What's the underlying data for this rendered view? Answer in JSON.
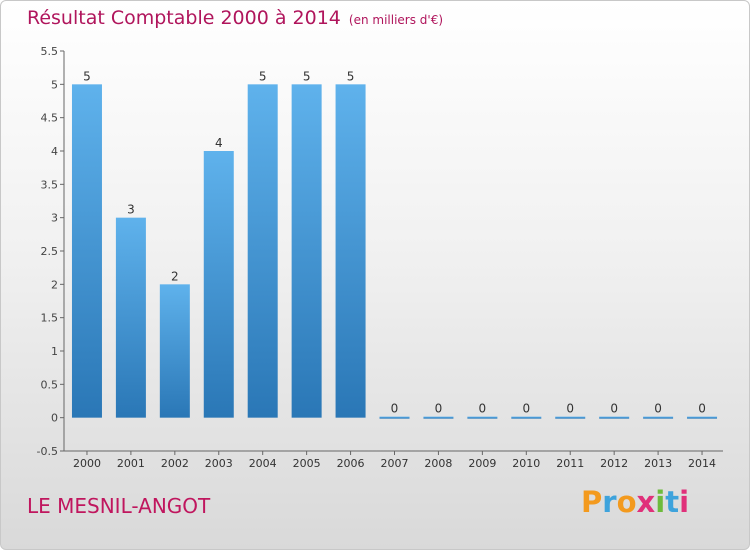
{
  "header": {
    "title": "Résultat Comptable 2000 à 2014",
    "subtitle": "(en milliers d'€)"
  },
  "footer": {
    "place": "LE MESNIL-ANGOT",
    "logo_letters": [
      "P",
      "r",
      "o",
      "x",
      "i",
      "t",
      "i"
    ]
  },
  "colors": {
    "title": "#b0155c",
    "bar_top": "#5fb2ec",
    "bar_bottom": "#2a77b6",
    "logo": [
      "#f39a1e",
      "#3ea3dc",
      "#f39a1e",
      "#e0307a",
      "#6dbb3c",
      "#3ea3dc",
      "#e0307a"
    ]
  },
  "chart_data": {
    "type": "bar",
    "title": "Résultat Comptable 2000 à 2014",
    "ylabel": "en milliers d'€",
    "xlabel": "",
    "categories": [
      "2000",
      "2001",
      "2002",
      "2003",
      "2004",
      "2005",
      "2006",
      "2007",
      "2008",
      "2009",
      "2010",
      "2011",
      "2012",
      "2013",
      "2014"
    ],
    "values": [
      5,
      3,
      2,
      4,
      5,
      5,
      5,
      0,
      0,
      0,
      0,
      0,
      0,
      0,
      0
    ],
    "ylim": [
      -0.5,
      5.5
    ],
    "yticks": [
      "-0.5",
      "0",
      "0.5",
      "1",
      "1.5",
      "2",
      "2.5",
      "3",
      "3.5",
      "4",
      "4.5",
      "5",
      "5.5"
    ],
    "grid": false
  }
}
